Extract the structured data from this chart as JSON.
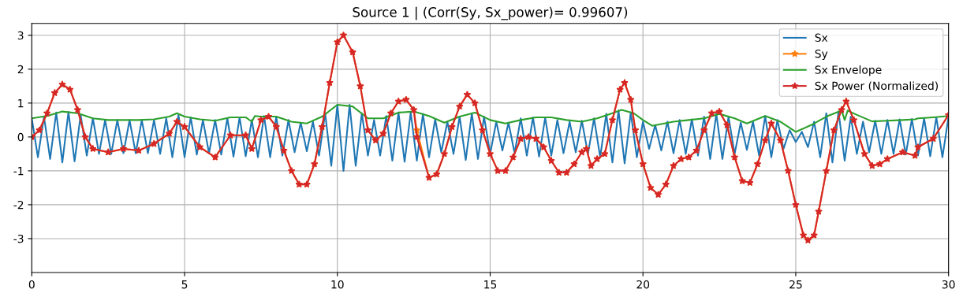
{
  "chart_data": {
    "type": "line",
    "title": "Source 1 | (Corr(Sy, Sx_power)= 0.99607)",
    "xlim": [
      0,
      30
    ],
    "ylim": [
      -4.0,
      3.35
    ],
    "xticks": [
      0,
      5,
      10,
      15,
      20,
      25,
      30
    ],
    "yticks": [
      -3,
      -2,
      -1,
      0,
      1,
      2,
      3
    ],
    "grid": true,
    "legend": "top right",
    "series": [
      {
        "name": "Sx",
        "color": "#1f77b4",
        "marker": "none",
        "x": [
          0,
          0.2,
          0.4,
          0.6,
          0.8,
          1.0,
          1.2,
          1.4,
          1.6,
          1.8,
          2.0,
          2.2,
          2.4,
          2.6,
          2.8,
          3.0,
          3.2,
          3.4,
          3.6,
          3.8,
          4.0,
          4.2,
          4.4,
          4.6,
          4.8,
          5.0,
          5.2,
          5.4,
          5.6,
          5.8,
          6.0,
          6.2,
          6.4,
          6.6,
          6.8,
          7.0,
          7.2,
          7.4,
          7.6,
          7.8,
          8.0,
          8.2,
          8.4,
          8.6,
          8.8,
          9.0,
          9.2,
          9.4,
          9.6,
          9.8,
          10.0,
          10.2,
          10.4,
          10.6,
          10.8,
          11.0,
          11.2,
          11.4,
          11.6,
          11.8,
          12.0,
          12.2,
          12.4,
          12.6,
          12.8,
          13.0,
          13.2,
          13.4,
          13.6,
          13.8,
          14.0,
          14.2,
          14.4,
          14.6,
          14.8,
          15.0,
          15.2,
          15.4,
          15.6,
          15.8,
          16.0,
          16.2,
          16.4,
          16.6,
          16.8,
          17.0,
          17.2,
          17.4,
          17.6,
          17.8,
          18.0,
          18.2,
          18.4,
          18.6,
          18.8,
          19.0,
          19.2,
          19.4,
          19.6,
          19.8,
          20.0,
          20.2,
          20.4,
          20.6,
          20.8,
          21.0,
          21.2,
          21.4,
          21.6,
          21.8,
          22.0,
          22.2,
          22.4,
          22.6,
          22.8,
          23.0,
          23.2,
          23.4,
          23.6,
          23.8,
          24.0,
          24.2,
          24.4,
          24.6,
          24.8,
          25.0,
          25.2,
          25.4,
          25.6,
          25.8,
          26.0,
          26.2,
          26.4,
          26.6,
          26.8,
          27.0,
          27.2,
          27.4,
          27.6,
          27.8,
          28.0,
          28.2,
          28.4,
          28.6,
          28.8,
          29.0,
          29.2,
          29.4,
          29.6,
          29.8,
          30.0
        ],
        "values": [
          0.55,
          -0.6,
          0.6,
          -0.65,
          0.72,
          -0.75,
          0.74,
          -0.72,
          0.65,
          -0.55,
          0.55,
          -0.5,
          0.5,
          -0.5,
          0.5,
          -0.48,
          0.5,
          -0.48,
          0.5,
          -0.48,
          0.5,
          -0.5,
          0.55,
          -0.6,
          0.65,
          -0.6,
          0.58,
          -0.52,
          0.5,
          -0.48,
          0.5,
          -0.52,
          0.55,
          -0.58,
          0.58,
          -0.57,
          0.5,
          -0.6,
          0.62,
          -0.6,
          0.6,
          -0.55,
          0.5,
          -0.45,
          0.42,
          -0.42,
          0.45,
          -0.55,
          0.7,
          -0.85,
          0.95,
          -1.0,
          0.95,
          -0.85,
          0.7,
          -0.55,
          0.5,
          -0.55,
          0.62,
          -0.7,
          0.72,
          -0.73,
          0.72,
          -0.7,
          0.68,
          -0.6,
          0.52,
          -0.45,
          0.45,
          -0.5,
          0.6,
          -0.68,
          0.7,
          -0.65,
          0.6,
          -0.5,
          0.45,
          -0.4,
          0.42,
          -0.48,
          0.55,
          -0.55,
          0.58,
          -0.58,
          0.57,
          -0.55,
          0.5,
          -0.48,
          0.45,
          -0.45,
          0.48,
          -0.5,
          0.55,
          -0.6,
          0.68,
          -0.75,
          0.78,
          -0.78,
          0.72,
          -0.6,
          0.45,
          -0.35,
          0.35,
          -0.4,
          0.45,
          -0.48,
          0.5,
          -0.5,
          0.52,
          -0.55,
          0.6,
          -0.65,
          0.68,
          -0.65,
          0.6,
          -0.5,
          0.42,
          -0.38,
          0.45,
          -0.55,
          0.62,
          -0.6,
          0.5,
          -0.35,
          0.2,
          -0.15,
          0.15,
          -0.3,
          0.45,
          -0.6,
          0.7,
          -0.75,
          0.75,
          -0.7,
          0.6,
          -0.5,
          0.45,
          -0.45,
          0.48,
          -0.5,
          0.5,
          -0.5,
          0.52,
          -0.52,
          0.53,
          -0.55,
          0.55,
          -0.57,
          0.58,
          -0.6,
          0.6
        ]
      },
      {
        "name": "Sy",
        "color": "#ff7f0e",
        "marker": "star",
        "x": [
          0,
          0.25,
          0.5,
          0.75,
          1.0,
          1.25,
          1.5,
          1.75,
          2.0,
          2.5,
          3.0,
          3.5,
          4.0,
          4.5,
          4.75,
          5.0,
          5.5,
          6.0,
          6.5,
          7.0,
          7.2,
          7.5,
          7.75,
          8.0,
          8.25,
          8.5,
          8.75,
          9.0,
          9.25,
          9.5,
          9.75,
          10.0,
          10.2,
          10.5,
          10.75,
          11.0,
          11.25,
          11.5,
          11.75,
          12.0,
          12.25,
          12.5,
          12.6,
          13.0,
          13.25,
          13.5,
          13.75,
          14.0,
          14.25,
          14.5,
          14.75,
          15.0,
          15.25,
          15.5,
          15.75,
          16.0,
          16.25,
          16.5,
          16.75,
          17.0,
          17.25,
          17.5,
          17.75,
          18.0,
          18.15,
          18.3,
          18.5,
          18.75,
          19.0,
          19.25,
          19.4,
          19.6,
          19.75,
          20.0,
          20.25,
          20.5,
          20.75,
          21.0,
          21.25,
          21.5,
          21.75,
          22.0,
          22.25,
          22.5,
          22.75,
          23.0,
          23.25,
          23.5,
          23.75,
          24.0,
          24.2,
          24.5,
          24.75,
          25.0,
          25.25,
          25.4,
          25.6,
          25.75,
          26.0,
          26.25,
          26.5,
          26.65,
          26.9,
          27.25,
          27.5,
          27.75,
          28.0,
          28.5,
          28.9,
          29.0,
          29.5,
          30.0
        ],
        "values": [
          0.0,
          0.2,
          0.7,
          1.3,
          1.55,
          1.4,
          0.8,
          0.0,
          -0.35,
          -0.45,
          -0.35,
          -0.4,
          -0.2,
          0.1,
          0.45,
          0.3,
          -0.3,
          -0.6,
          0.05,
          0.05,
          -0.35,
          0.5,
          0.6,
          0.3,
          -0.4,
          -1.0,
          -1.4,
          -1.4,
          -0.8,
          0.3,
          1.6,
          2.8,
          3.0,
          2.5,
          1.5,
          0.2,
          -0.1,
          0.1,
          0.7,
          1.05,
          1.1,
          0.8,
          0.2,
          -1.2,
          -1.1,
          -0.5,
          0.3,
          0.9,
          1.25,
          1.0,
          0.2,
          -0.5,
          -1.0,
          -1.0,
          -0.6,
          -0.05,
          0.0,
          -0.05,
          -0.3,
          -0.7,
          -1.05,
          -1.05,
          -0.8,
          -0.45,
          -0.35,
          -0.85,
          -0.65,
          -0.5,
          0.5,
          1.4,
          1.6,
          1.1,
          0.2,
          -0.8,
          -1.5,
          -1.7,
          -1.4,
          -0.85,
          -0.65,
          -0.6,
          -0.4,
          0.2,
          0.7,
          0.75,
          0.35,
          -0.6,
          -1.3,
          -1.35,
          -0.8,
          -0.1,
          0.4,
          -0.1,
          -1.0,
          -2.0,
          -2.9,
          -3.05,
          -2.9,
          -2.2,
          -1.0,
          0.2,
          0.8,
          1.05,
          0.5,
          -0.5,
          -0.85,
          -0.8,
          -0.65,
          -0.45,
          -0.55,
          -0.3,
          -0.05,
          0.65
        ]
      },
      {
        "name": "Sx Envelope",
        "color": "#2ca02c",
        "marker": "none",
        "x": [
          0,
          0.5,
          1,
          1.5,
          2,
          2.5,
          3,
          3.5,
          4,
          4.5,
          4.75,
          5,
          5.5,
          6,
          6.5,
          7,
          7.2,
          7.3,
          7.5,
          8,
          8.5,
          9,
          9.5,
          10,
          10.5,
          11,
          11.5,
          12,
          12.5,
          13,
          13.5,
          14,
          14.5,
          15,
          15.5,
          16,
          16.5,
          17,
          17.5,
          18,
          18.5,
          19,
          19.3,
          19.7,
          20,
          20.3,
          21,
          21.5,
          22,
          22.5,
          23,
          23.4,
          24,
          24.5,
          25,
          25.5,
          26,
          26.5,
          26.6,
          26.7,
          27,
          27.5,
          28,
          28.5,
          28.9,
          29,
          29.5,
          30
        ],
        "values": [
          0.55,
          0.62,
          0.75,
          0.7,
          0.55,
          0.5,
          0.5,
          0.5,
          0.52,
          0.6,
          0.7,
          0.6,
          0.52,
          0.48,
          0.58,
          0.58,
          0.45,
          0.62,
          0.6,
          0.6,
          0.45,
          0.4,
          0.6,
          0.95,
          0.9,
          0.55,
          0.55,
          0.72,
          0.75,
          0.62,
          0.42,
          0.6,
          0.72,
          0.5,
          0.4,
          0.5,
          0.58,
          0.58,
          0.5,
          0.45,
          0.55,
          0.7,
          0.8,
          0.7,
          0.5,
          0.33,
          0.45,
          0.5,
          0.55,
          0.68,
          0.55,
          0.4,
          0.62,
          0.45,
          0.15,
          0.35,
          0.6,
          0.78,
          0.5,
          0.78,
          0.65,
          0.46,
          0.48,
          0.5,
          0.52,
          0.55,
          0.58,
          0.62
        ]
      },
      {
        "name": "Sx Power (Normalized)",
        "color": "#d62728",
        "marker": "star",
        "x": [
          0,
          0.25,
          0.5,
          0.75,
          1.0,
          1.25,
          1.5,
          1.75,
          2.0,
          2.5,
          3.0,
          3.5,
          4.0,
          4.5,
          4.75,
          5.0,
          5.5,
          6.0,
          6.5,
          7.0,
          7.2,
          7.5,
          7.75,
          8.0,
          8.25,
          8.5,
          8.75,
          9.0,
          9.25,
          9.5,
          9.75,
          10.0,
          10.2,
          10.5,
          10.75,
          11.0,
          11.25,
          11.5,
          11.75,
          12.0,
          12.25,
          12.5,
          12.6,
          13.0,
          13.25,
          13.5,
          13.75,
          14.0,
          14.25,
          14.5,
          14.75,
          15.0,
          15.25,
          15.5,
          15.75,
          16.0,
          16.25,
          16.5,
          16.75,
          17.0,
          17.25,
          17.5,
          17.75,
          18.0,
          18.15,
          18.3,
          18.5,
          18.75,
          19.0,
          19.25,
          19.4,
          19.6,
          19.75,
          20.0,
          20.25,
          20.5,
          20.75,
          21.0,
          21.25,
          21.5,
          21.75,
          22.0,
          22.25,
          22.5,
          22.75,
          23.0,
          23.25,
          23.5,
          23.75,
          24.0,
          24.2,
          24.5,
          24.75,
          25.0,
          25.25,
          25.4,
          25.6,
          25.75,
          26.0,
          26.25,
          26.5,
          26.65,
          26.9,
          27.25,
          27.5,
          27.75,
          28.0,
          28.5,
          28.9,
          29.0,
          29.5,
          30.0
        ],
        "values": [
          0.0,
          0.2,
          0.7,
          1.3,
          1.55,
          1.4,
          0.8,
          0.0,
          -0.35,
          -0.45,
          -0.35,
          -0.4,
          -0.2,
          0.1,
          0.45,
          0.3,
          -0.3,
          -0.6,
          0.05,
          0.05,
          -0.35,
          0.5,
          0.6,
          0.3,
          -0.4,
          -1.0,
          -1.4,
          -1.4,
          -0.8,
          0.3,
          1.6,
          2.8,
          3.0,
          2.5,
          1.5,
          0.2,
          -0.1,
          0.1,
          0.7,
          1.05,
          1.1,
          0.8,
          0.0,
          -1.2,
          -1.1,
          -0.5,
          0.3,
          0.9,
          1.25,
          1.0,
          0.2,
          -0.5,
          -1.0,
          -1.0,
          -0.6,
          -0.05,
          0.0,
          -0.05,
          -0.3,
          -0.7,
          -1.05,
          -1.05,
          -0.8,
          -0.45,
          -0.35,
          -0.85,
          -0.65,
          -0.5,
          0.5,
          1.4,
          1.6,
          1.1,
          0.2,
          -0.8,
          -1.5,
          -1.7,
          -1.4,
          -0.85,
          -0.65,
          -0.6,
          -0.4,
          0.2,
          0.7,
          0.75,
          0.35,
          -0.6,
          -1.3,
          -1.35,
          -0.8,
          -0.1,
          0.4,
          -0.1,
          -1.0,
          -2.0,
          -2.9,
          -3.05,
          -2.9,
          -2.2,
          -1.0,
          0.2,
          0.8,
          1.05,
          0.5,
          -0.5,
          -0.85,
          -0.8,
          -0.65,
          -0.45,
          -0.55,
          -0.3,
          -0.05,
          0.65
        ]
      }
    ]
  }
}
